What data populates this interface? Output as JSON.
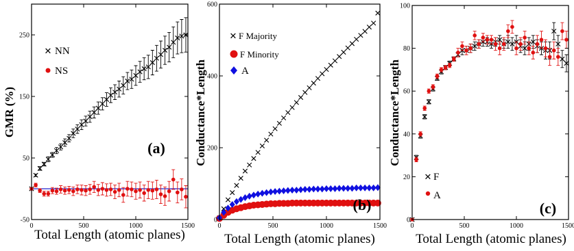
{
  "colors": {
    "black": "#000000",
    "red": "#e01010",
    "blue": "#1010e0",
    "hline": "#2222cc"
  },
  "chart_data": [
    {
      "id": "a",
      "type": "scatter",
      "panel_label": "(a)",
      "xlabel": "Total Length (atomic planes)",
      "ylabel": "GMR (%)",
      "xlim": [
        0,
        1500
      ],
      "ylim": [
        -50,
        300
      ],
      "xticks": [
        0,
        500,
        1000,
        1500
      ],
      "yticks": [
        -50,
        50,
        150,
        250
      ],
      "hline": 0,
      "legend": {
        "placement": "top-left",
        "entries": [
          "NN",
          "NS"
        ]
      },
      "series": [
        {
          "name": "NN",
          "marker": "x",
          "color": "#000000",
          "x": [
            0,
            40,
            80,
            120,
            160,
            200,
            240,
            280,
            320,
            360,
            400,
            440,
            480,
            520,
            560,
            600,
            640,
            680,
            720,
            760,
            800,
            840,
            880,
            920,
            960,
            1000,
            1040,
            1080,
            1120,
            1160,
            1200,
            1240,
            1280,
            1320,
            1360,
            1400,
            1440,
            1480
          ],
          "y": [
            0,
            22,
            33,
            40,
            48,
            55,
            62,
            68,
            75,
            82,
            90,
            97,
            104,
            110,
            117,
            124,
            131,
            138,
            145,
            152,
            157,
            162,
            168,
            175,
            178,
            184,
            190,
            195,
            198,
            205,
            212,
            218,
            225,
            230,
            238,
            245,
            248,
            250
          ],
          "err": [
            0,
            2,
            3,
            3,
            4,
            4,
            5,
            5,
            6,
            6,
            7,
            7,
            8,
            8,
            9,
            9,
            10,
            10,
            11,
            12,
            12,
            13,
            14,
            14,
            15,
            16,
            17,
            18,
            19,
            20,
            21,
            22,
            23,
            24,
            25,
            26,
            27,
            28
          ]
        },
        {
          "name": "NS",
          "marker": "circle",
          "color": "#e01010",
          "x": [
            0,
            40,
            80,
            120,
            160,
            200,
            240,
            280,
            320,
            360,
            400,
            440,
            480,
            520,
            560,
            600,
            640,
            680,
            720,
            760,
            800,
            840,
            880,
            920,
            960,
            1000,
            1040,
            1080,
            1120,
            1160,
            1200,
            1240,
            1280,
            1320,
            1360,
            1400,
            1440,
            1480
          ],
          "y": [
            0,
            6,
            -3,
            -8,
            -8,
            -3,
            -4,
            -1,
            -3,
            -2,
            -4,
            -1,
            -2,
            -3,
            -1,
            3,
            -2,
            0,
            -2,
            -1,
            -5,
            -2,
            -10,
            0,
            -1,
            -4,
            -2,
            -7,
            -2,
            -3,
            -1,
            -9,
            -12,
            -4,
            15,
            -6,
            -1,
            -13
          ],
          "err": [
            0,
            3,
            3,
            4,
            4,
            5,
            5,
            6,
            6,
            6,
            7,
            7,
            8,
            8,
            8,
            9,
            9,
            10,
            10,
            10,
            11,
            11,
            12,
            12,
            12,
            13,
            13,
            13,
            14,
            14,
            15,
            15,
            15,
            16,
            16,
            17,
            17,
            18
          ]
        }
      ]
    },
    {
      "id": "b",
      "type": "scatter",
      "panel_label": "(b)",
      "xlabel": "Total Length (atomic planes)",
      "ylabel": "Conductance*Length",
      "xlim": [
        0,
        1500
      ],
      "ylim": [
        0,
        600
      ],
      "xticks": [
        0,
        500,
        1000,
        1500
      ],
      "yticks": [
        0,
        200,
        400,
        600
      ],
      "legend": {
        "placement": "top-left",
        "entries": [
          "F Majority",
          "F Minority",
          "A"
        ]
      },
      "series": [
        {
          "name": "F Majority",
          "marker": "x",
          "color": "#000000",
          "x": [
            0,
            40,
            80,
            120,
            160,
            200,
            240,
            280,
            320,
            360,
            400,
            440,
            480,
            520,
            560,
            600,
            640,
            680,
            720,
            760,
            800,
            840,
            880,
            920,
            960,
            1000,
            1040,
            1080,
            1120,
            1160,
            1200,
            1240,
            1280,
            1320,
            1360,
            1400,
            1440,
            1480
          ],
          "y": [
            5,
            30,
            55,
            75,
            95,
            115,
            135,
            152,
            170,
            187,
            205,
            221,
            238,
            253,
            268,
            283,
            298,
            312,
            326,
            340,
            354,
            367,
            380,
            393,
            406,
            418,
            430,
            442,
            454,
            466,
            478,
            490,
            502,
            513,
            524,
            536,
            547,
            575
          ]
        },
        {
          "name": "F Minority",
          "marker": "circle",
          "color": "#e01010",
          "x": [
            0,
            40,
            80,
            120,
            160,
            200,
            240,
            280,
            320,
            360,
            400,
            440,
            480,
            520,
            560,
            600,
            640,
            680,
            720,
            760,
            800,
            840,
            880,
            920,
            960,
            1000,
            1040,
            1080,
            1120,
            1160,
            1200,
            1240,
            1280,
            1320,
            1360,
            1400,
            1440,
            1480
          ],
          "y": [
            3,
            12,
            20,
            26,
            30,
            33,
            36,
            38,
            40,
            41,
            42,
            43,
            44,
            44,
            45,
            45,
            45,
            46,
            46,
            46,
            46,
            46,
            46,
            46,
            46,
            46,
            46,
            46,
            46,
            46,
            46,
            46,
            46,
            46,
            46,
            46,
            46,
            46
          ]
        },
        {
          "name": "A",
          "marker": "diamond",
          "color": "#1010e0",
          "x": [
            0,
            40,
            80,
            120,
            160,
            200,
            240,
            280,
            320,
            360,
            400,
            440,
            480,
            520,
            560,
            600,
            640,
            680,
            720,
            760,
            800,
            840,
            880,
            920,
            960,
            1000,
            1040,
            1080,
            1120,
            1160,
            1200,
            1240,
            1280,
            1320,
            1360,
            1400,
            1440,
            1480
          ],
          "y": [
            5,
            20,
            32,
            42,
            50,
            56,
            61,
            65,
            68,
            71,
            73,
            75,
            77,
            78,
            79,
            80,
            81,
            82,
            82,
            83,
            84,
            84,
            85,
            85,
            85,
            86,
            86,
            86,
            87,
            87,
            87,
            87,
            88,
            88,
            88,
            88,
            88,
            89
          ]
        }
      ]
    },
    {
      "id": "c",
      "type": "scatter",
      "panel_label": "(c)",
      "xlabel": "Total Length (atomic planes)",
      "ylabel": "Conductance*Length",
      "xlim": [
        0,
        1500
      ],
      "ylim": [
        0,
        100
      ],
      "xticks": [
        0,
        500,
        1000,
        1500
      ],
      "yticks": [
        0,
        20,
        40,
        60,
        80,
        100
      ],
      "legend": {
        "placement": "bottom-left",
        "entries": [
          "F",
          "A"
        ]
      },
      "series": [
        {
          "name": "F",
          "marker": "x",
          "color": "#000000",
          "x": [
            0,
            40,
            80,
            120,
            160,
            200,
            240,
            280,
            320,
            360,
            400,
            440,
            480,
            520,
            560,
            600,
            640,
            680,
            720,
            760,
            800,
            840,
            880,
            920,
            960,
            1000,
            1040,
            1080,
            1120,
            1160,
            1200,
            1240,
            1280,
            1320,
            1360,
            1400,
            1440,
            1480
          ],
          "y": [
            0,
            29,
            39,
            48,
            55,
            61,
            66,
            69,
            71,
            73,
            75,
            77,
            79,
            79,
            80,
            81,
            82,
            83,
            83,
            82,
            83,
            84,
            82,
            83,
            82,
            83,
            81,
            80,
            82,
            83,
            81,
            80,
            79,
            79,
            88,
            82,
            75,
            73
          ],
          "err": [
            0,
            1,
            1,
            1,
            1,
            1,
            1,
            1,
            1,
            1,
            1,
            1,
            2,
            2,
            2,
            2,
            2,
            2,
            2,
            2,
            2,
            2,
            2,
            3,
            3,
            3,
            3,
            3,
            3,
            3,
            3,
            3,
            4,
            4,
            4,
            4,
            4,
            4
          ]
        },
        {
          "name": "A",
          "marker": "circle",
          "color": "#e01010",
          "x": [
            0,
            40,
            80,
            120,
            160,
            200,
            240,
            280,
            320,
            360,
            400,
            440,
            480,
            520,
            560,
            600,
            640,
            680,
            720,
            760,
            800,
            840,
            880,
            920,
            960,
            1000,
            1040,
            1080,
            1120,
            1160,
            1200,
            1240,
            1280,
            1320,
            1360,
            1400,
            1440,
            1480
          ],
          "y": [
            0,
            28,
            40,
            52,
            60,
            62,
            67,
            70,
            71,
            72,
            75,
            78,
            81,
            79,
            80,
            86,
            82,
            85,
            84,
            84,
            82,
            80,
            82,
            88,
            90,
            80,
            82,
            85,
            80,
            78,
            82,
            84,
            80,
            76,
            79,
            76,
            88,
            84
          ],
          "err": [
            0,
            1,
            1,
            1,
            1,
            1,
            1,
            1,
            1,
            1,
            1,
            2,
            2,
            2,
            2,
            2,
            2,
            2,
            2,
            2,
            3,
            3,
            3,
            3,
            3,
            3,
            3,
            3,
            3,
            3,
            4,
            4,
            4,
            4,
            4,
            4,
            4,
            4
          ]
        }
      ]
    }
  ]
}
